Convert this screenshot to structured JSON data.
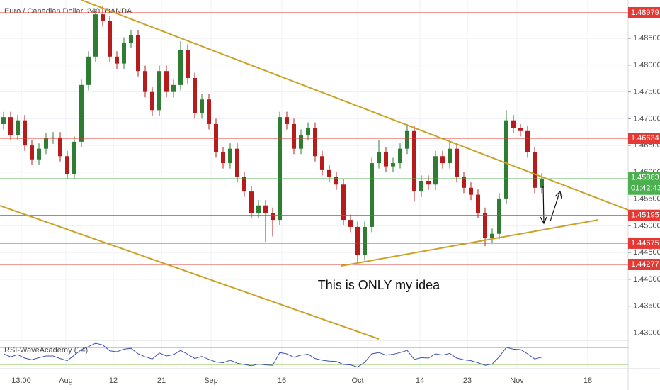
{
  "chart_data": {
    "type": "candlestick",
    "title": "Euro / Canadian Dollar, 240, OANDA",
    "annotation": "This is ONLY my idea",
    "timer": "01:42:43",
    "up_color": "#2e7d32",
    "down_color": "#b71c1c",
    "grid": true,
    "xlim": [
      0,
      88.7
    ],
    "xticks": [
      {
        "value": 3,
        "label": "13:00"
      },
      {
        "value": 9.3,
        "label": "Aug"
      },
      {
        "value": 16,
        "label": "12"
      },
      {
        "value": 22.8,
        "label": "21"
      },
      {
        "value": 29.8,
        "label": "Sep"
      },
      {
        "value": 39.8,
        "label": "16"
      },
      {
        "value": 50.5,
        "label": "Oct"
      },
      {
        "value": 59.3,
        "label": "14"
      },
      {
        "value": 66,
        "label": "23"
      },
      {
        "value": 73,
        "label": "Nov"
      },
      {
        "value": 83,
        "label": "18"
      }
    ],
    "ylim": [
      1.4286,
      1.49217
    ],
    "yticks": [
      {
        "value": 1.43,
        "label": "1.43000"
      },
      {
        "value": 1.435,
        "label": "1.43500"
      },
      {
        "value": 1.44,
        "label": "1.44000"
      },
      {
        "value": 1.445,
        "label": "1.44500"
      },
      {
        "value": 1.45,
        "label": "1.45000"
      },
      {
        "value": 1.455,
        "label": "1.45500"
      },
      {
        "value": 1.46,
        "label": "1.46000"
      },
      {
        "value": 1.465,
        "label": "1.46500"
      },
      {
        "value": 1.47,
        "label": "1.47000"
      },
      {
        "value": 1.475,
        "label": "1.47500"
      },
      {
        "value": 1.48,
        "label": "1.48000"
      },
      {
        "value": 1.485,
        "label": "1.48500"
      }
    ],
    "levels": [
      1.48979,
      1.46634,
      1.45195,
      1.44675,
      1.44277
    ],
    "level_color": "#e53935",
    "last_price": 1.45883,
    "last_price_color": "#4caf50",
    "trendlines": [
      {
        "x": [
          11.5,
          88.7
        ],
        "y": [
          1.49217,
          1.45296
        ]
      },
      {
        "x": [
          0,
          53.5
        ],
        "y": [
          1.45376,
          1.42886
        ]
      },
      {
        "x": [
          48.2,
          84.5
        ],
        "y": [
          1.4425,
          1.45111
        ]
      }
    ],
    "trendline_color": "#c9a227",
    "x": [
      0.5,
      1.5,
      2.5,
      3.5,
      4.5,
      5.5,
      6.5,
      7.5,
      8.5,
      9.5,
      10.5,
      11.5,
      12.5,
      13.5,
      14.5,
      15.5,
      16.5,
      17.5,
      18.5,
      19.5,
      20.5,
      21.5,
      22.5,
      23.5,
      24.5,
      25.5,
      26.5,
      27.5,
      28.5,
      29.5,
      30.5,
      31.5,
      32.5,
      33.5,
      34.5,
      35.5,
      36.5,
      37.5,
      38.5,
      39.5,
      40.5,
      41.5,
      42.5,
      43.5,
      44.5,
      45.5,
      46.5,
      47.5,
      48.5,
      49.5,
      50.5,
      51.5,
      52.5,
      53.5,
      54.5,
      55.5,
      56.5,
      57.5,
      58.5,
      59.5,
      60.5,
      61.5,
      62.5,
      63.5,
      64.5,
      65.5,
      66.5,
      67.5,
      68.5,
      69.5,
      70.5,
      71.5,
      72.5,
      73.5,
      74.5,
      75.5,
      76.5
    ],
    "open": [
      1.469,
      1.4703,
      1.467,
      1.4697,
      1.465,
      1.4624,
      1.4644,
      1.4663,
      1.4665,
      1.463,
      1.4597,
      1.4657,
      1.4763,
      1.4816,
      1.4895,
      1.4882,
      1.4816,
      1.4803,
      1.4842,
      1.4856,
      1.4789,
      1.475,
      1.4716,
      1.4789,
      1.475,
      1.4763,
      1.4829,
      1.4776,
      1.471,
      1.4736,
      1.469,
      1.4637,
      1.4617,
      1.4644,
      1.4591,
      1.4564,
      1.4524,
      1.4538,
      1.4524,
      1.4511,
      1.4703,
      1.469,
      1.4644,
      1.467,
      1.4683,
      1.463,
      1.4604,
      1.4591,
      1.4577,
      1.4511,
      1.4498,
      1.4445,
      1.4498,
      1.4617,
      1.4637,
      1.4611,
      1.4617,
      1.4644,
      1.4677,
      1.4564,
      1.4584,
      1.4577,
      1.463,
      1.4617,
      1.4644,
      1.4591,
      1.4571,
      1.4558,
      1.4524,
      1.4478,
      1.4485,
      1.4551,
      1.4697,
      1.4683,
      1.4677,
      1.4637,
      1.4571
    ],
    "high": [
      1.4713,
      1.4713,
      1.4707,
      1.4707,
      1.466,
      1.4654,
      1.4673,
      1.4675,
      1.4675,
      1.464,
      1.4667,
      1.4773,
      1.4826,
      1.4905,
      1.491,
      1.4892,
      1.4826,
      1.4852,
      1.4866,
      1.4866,
      1.4799,
      1.476,
      1.4799,
      1.4799,
      1.4773,
      1.4845,
      1.4839,
      1.4786,
      1.4746,
      1.4746,
      1.47,
      1.4647,
      1.4654,
      1.4654,
      1.4601,
      1.4574,
      1.4548,
      1.4548,
      1.4534,
      1.4713,
      1.4713,
      1.47,
      1.468,
      1.4693,
      1.4693,
      1.464,
      1.4614,
      1.4601,
      1.4587,
      1.4521,
      1.4508,
      1.4508,
      1.4627,
      1.466,
      1.4647,
      1.4627,
      1.4654,
      1.469,
      1.4687,
      1.4594,
      1.4594,
      1.464,
      1.464,
      1.466,
      1.4654,
      1.4601,
      1.4581,
      1.4568,
      1.4534,
      1.4495,
      1.4561,
      1.4716,
      1.4707,
      1.469,
      1.4687,
      1.4647,
      1.4598
    ],
    "low": [
      1.468,
      1.466,
      1.466,
      1.464,
      1.4614,
      1.4614,
      1.4634,
      1.4653,
      1.462,
      1.4587,
      1.4587,
      1.4647,
      1.4753,
      1.4806,
      1.4872,
      1.4806,
      1.4793,
      1.4793,
      1.4832,
      1.4779,
      1.474,
      1.4706,
      1.4706,
      1.474,
      1.474,
      1.4753,
      1.4766,
      1.47,
      1.47,
      1.468,
      1.4627,
      1.4607,
      1.4607,
      1.4581,
      1.4554,
      1.4514,
      1.4514,
      1.447,
      1.448,
      1.4501,
      1.468,
      1.4634,
      1.4634,
      1.466,
      1.462,
      1.4594,
      1.4581,
      1.4567,
      1.4501,
      1.4488,
      1.4428,
      1.4435,
      1.4488,
      1.4607,
      1.4601,
      1.4601,
      1.4607,
      1.4634,
      1.4545,
      1.4554,
      1.4567,
      1.4567,
      1.4607,
      1.4607,
      1.4581,
      1.4561,
      1.4548,
      1.4514,
      1.4462,
      1.4468,
      1.4475,
      1.4541,
      1.4673,
      1.4667,
      1.4627,
      1.4561,
      1.4561
    ],
    "close": [
      1.4703,
      1.467,
      1.4697,
      1.465,
      1.4624,
      1.4644,
      1.4663,
      1.4665,
      1.463,
      1.4597,
      1.4657,
      1.4763,
      1.4816,
      1.4895,
      1.4882,
      1.4816,
      1.4803,
      1.4842,
      1.4856,
      1.4789,
      1.475,
      1.4716,
      1.4789,
      1.475,
      1.4763,
      1.4829,
      1.4776,
      1.471,
      1.4736,
      1.469,
      1.4637,
      1.4617,
      1.4644,
      1.4591,
      1.4564,
      1.4524,
      1.4538,
      1.4524,
      1.4511,
      1.4703,
      1.469,
      1.4644,
      1.467,
      1.4683,
      1.463,
      1.4604,
      1.4591,
      1.4577,
      1.4511,
      1.4498,
      1.4445,
      1.4498,
      1.4617,
      1.4637,
      1.4611,
      1.4617,
      1.4644,
      1.4677,
      1.4564,
      1.4584,
      1.4577,
      1.463,
      1.4617,
      1.4644,
      1.4591,
      1.4571,
      1.4558,
      1.4524,
      1.4478,
      1.4485,
      1.4551,
      1.4697,
      1.4683,
      1.4677,
      1.4637,
      1.4571,
      1.4588
    ],
    "rsi": {
      "name": "RSI-WaveAcademy (14)",
      "color": "#3f51b5",
      "ylim": [
        20,
        86.7
      ],
      "levels": [
        70,
        30
      ],
      "level_colors": [
        "#e57373",
        "#8bc34a"
      ],
      "values": [
        55,
        48,
        53,
        45,
        41,
        46,
        50,
        50,
        44,
        39,
        52,
        65,
        72,
        80,
        76,
        62,
        60,
        66,
        68,
        55,
        48,
        43,
        57,
        50,
        53,
        63,
        54,
        44,
        49,
        42,
        36,
        34,
        40,
        33,
        30,
        27,
        31,
        29,
        28,
        58,
        55,
        47,
        52,
        54,
        44,
        40,
        38,
        37,
        30,
        29,
        24,
        35,
        55,
        58,
        52,
        54,
        58,
        63,
        42,
        46,
        45,
        55,
        52,
        56,
        45,
        41,
        39,
        34,
        28,
        31,
        48,
        70,
        66,
        65,
        55,
        43,
        47
      ]
    }
  }
}
